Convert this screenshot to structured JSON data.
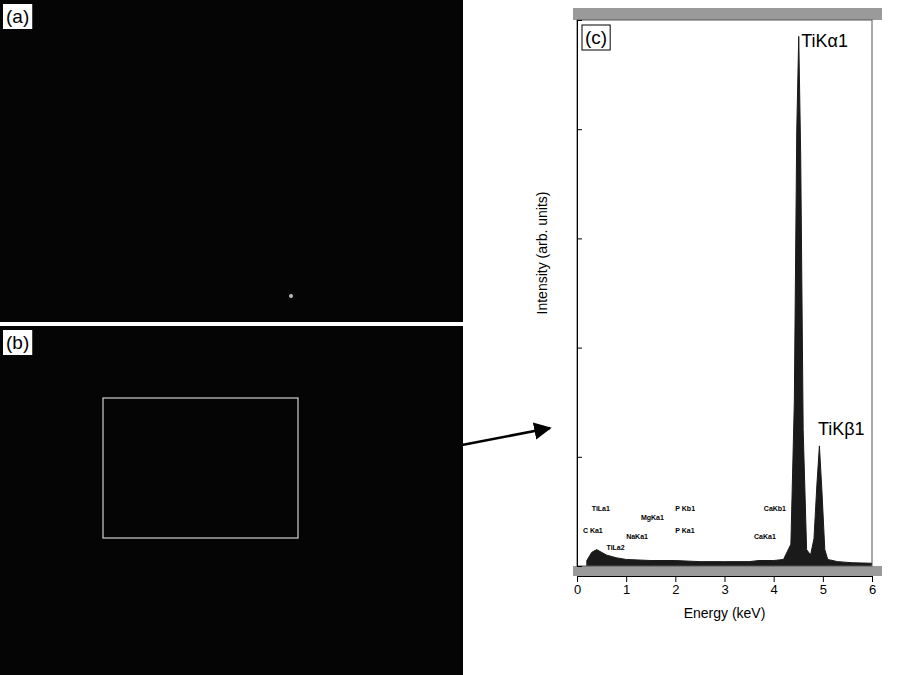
{
  "panels": [
    {
      "label": "(a)"
    },
    {
      "label": "(b)"
    }
  ],
  "chart_data": {
    "type": "area",
    "panel_label": "(c)",
    "x_label": "Energy (keV)",
    "y_label": "Intensity (arb. units)",
    "x": [
      0.2,
      0.3,
      0.4,
      0.5,
      0.6,
      0.8,
      1.0,
      1.5,
      2.0,
      2.5,
      3.0,
      3.5,
      3.7,
      4.0,
      4.2,
      4.35,
      4.42,
      4.47,
      4.51,
      4.55,
      4.6,
      4.67,
      4.75,
      4.82,
      4.88,
      4.93,
      4.98,
      5.04,
      5.1,
      5.3,
      5.6,
      6.0
    ],
    "values": [
      1,
      2.5,
      3,
      2.5,
      2,
      1.5,
      1.2,
      1,
      1,
      0.8,
      0.8,
      0.8,
      1,
      1,
      1.2,
      4,
      30,
      80,
      97,
      75,
      25,
      3,
      2,
      5,
      15,
      22,
      14,
      3,
      1.2,
      0.8,
      0.6,
      0.5
    ],
    "color": "#1a1a1a",
    "xlim": [
      0,
      6
    ],
    "xticks": [
      0,
      1,
      2,
      3,
      4,
      5,
      6
    ],
    "ylim": [
      0,
      100
    ],
    "yticks": [
      0,
      20,
      40,
      60,
      80,
      100
    ],
    "tick_labels": "x",
    "peak_labels": [
      {
        "text": "TiKα1",
        "x": 4.56,
        "y": 95
      },
      {
        "text": "TiKβ1",
        "x": 4.9,
        "y": 24
      }
    ],
    "element_labels": [
      {
        "text": "C Ka1",
        "x": 0.12,
        "y": 6
      },
      {
        "text": "TiLa1",
        "x": 0.3,
        "y": 10
      },
      {
        "text": "TiLa2",
        "x": 0.6,
        "y": 3
      },
      {
        "text": "NaKa1",
        "x": 1.0,
        "y": 5
      },
      {
        "text": "MgKa1",
        "x": 1.3,
        "y": 8.5
      },
      {
        "text": "P Kb1",
        "x": 2.0,
        "y": 10
      },
      {
        "text": "P Ka1",
        "x": 2.0,
        "y": 6
      },
      {
        "text": "CaKb1",
        "x": 3.8,
        "y": 10
      },
      {
        "text": "CaKa1",
        "x": 3.6,
        "y": 5
      }
    ]
  }
}
